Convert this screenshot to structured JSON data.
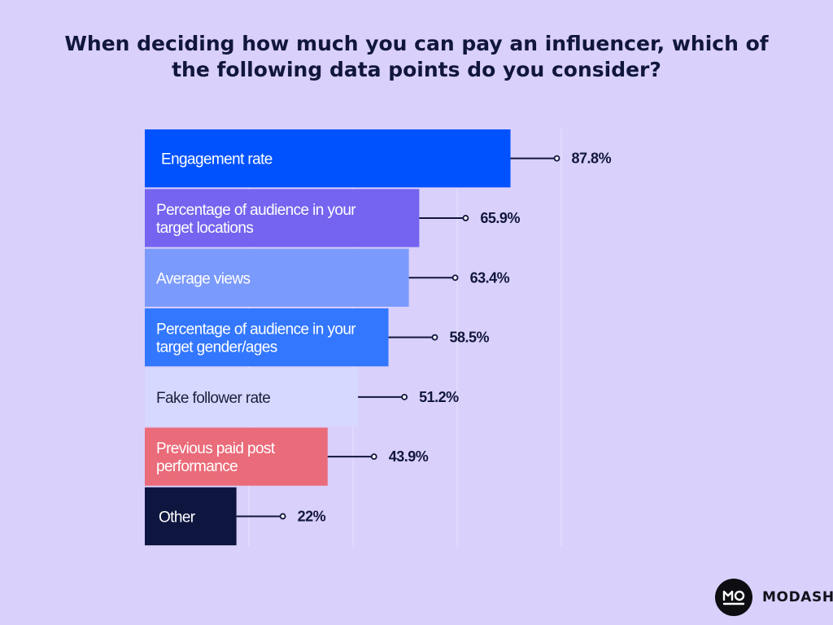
{
  "title_lines": [
    "When deciding how much you can pay an influencer, which of",
    "the following data points do you consider?"
  ],
  "chart_data": {
    "type": "bar",
    "orientation": "horizontal",
    "title": "When deciding how much you can pay an influencer, which of the following data points do you consider?",
    "categories": [
      "Engagement rate",
      "Percentage of audience in your target locations",
      "Average views",
      "Percentage of audience in your target gender/ages",
      "Fake follower rate",
      "Previous paid post performance",
      "Other"
    ],
    "category_lines": [
      [
        "Engagement rate"
      ],
      [
        "Percentage of audience in your",
        "target locations"
      ],
      [
        "Average views"
      ],
      [
        "Percentage of audience in your",
        "target gender/ages"
      ],
      [
        "Fake follower rate"
      ],
      [
        "Previous paid post",
        "performance"
      ],
      [
        "Other"
      ]
    ],
    "values": [
      87.8,
      65.9,
      63.4,
      58.5,
      51.2,
      43.9,
      22
    ],
    "value_labels": [
      "87.8%",
      "65.9%",
      "63.4%",
      "58.5%",
      "51.2%",
      "43.9%",
      "22%"
    ],
    "unit": "%",
    "xlim": [
      0,
      100
    ],
    "bar_colors": [
      "#0052ff",
      "#7464ef",
      "#7b9afe",
      "#3377ff",
      "#d6d8ff",
      "#ea6b79",
      "#0e1640"
    ],
    "label_colors": [
      "#ffffff",
      "#ffffff",
      "#ffffff",
      "#ffffff",
      "#1b1f3b",
      "#ffffff",
      "#ffffff"
    ],
    "gridlines": [
      25,
      50,
      75,
      100
    ],
    "xlabel": "",
    "ylabel": ""
  },
  "brand": {
    "mark": "MO",
    "name": "MODASH"
  }
}
